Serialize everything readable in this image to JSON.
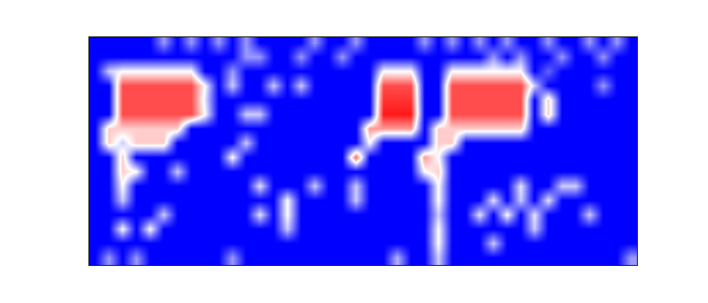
{
  "chart_data": {
    "type": "heatmap",
    "color": "bwr",
    "color_range": [
      0,
      1
    ],
    "tick_labels": false,
    "cells": [
      [
        0,
        0,
        0,
        0,
        0,
        0.3,
        0,
        0.3,
        0,
        0.3,
        0,
        0.3,
        0,
        0,
        0,
        0,
        0.3,
        0,
        0,
        0.3,
        0,
        0,
        0,
        0,
        0.3,
        0,
        0.3,
        0,
        0.3,
        0,
        0.3,
        0,
        0,
        0.3,
        0,
        0,
        0.3,
        0,
        0.3,
        0
      ],
      [
        0,
        0,
        0,
        0,
        0,
        0,
        0,
        0,
        0,
        0,
        0,
        0.3,
        0.3,
        0,
        0,
        0.3,
        0,
        0,
        0.3,
        0,
        0,
        0,
        0,
        0,
        0,
        0,
        0,
        0,
        0,
        0.3,
        0,
        0.3,
        0,
        0,
        0.3,
        0,
        0,
        0.3,
        0,
        0
      ],
      [
        0,
        0.4,
        0.5,
        0.5,
        0.5,
        0.5,
        0.5,
        0.5,
        0,
        0,
        0.3,
        0,
        0,
        0,
        0,
        0,
        0,
        0,
        0,
        0,
        0,
        0.5,
        0.5,
        0.5,
        0,
        0,
        0.5,
        0.5,
        0.5,
        0.5,
        0.5,
        0.5,
        0,
        0.2,
        0,
        0,
        0,
        0,
        0,
        0
      ],
      [
        0,
        0,
        0.85,
        0.85,
        0.85,
        0.85,
        0.85,
        0.85,
        0.5,
        0,
        0.4,
        0,
        0,
        0.4,
        0,
        0.4,
        0,
        0,
        0,
        0,
        0,
        0.85,
        0.85,
        0.85,
        0,
        0,
        0.85,
        0.85,
        0.85,
        0.85,
        0.85,
        0.85,
        0.4,
        0,
        0,
        0,
        0,
        0.3,
        0,
        0
      ],
      [
        0,
        0,
        0.85,
        0.85,
        0.85,
        0.85,
        0.85,
        0.85,
        0.45,
        0,
        0,
        0,
        0,
        0,
        0,
        0,
        0,
        0,
        0,
        0,
        0,
        0.9,
        0.9,
        0.9,
        0,
        0,
        0.85,
        0.85,
        0.85,
        0.85,
        0.85,
        0.85,
        0,
        0.6,
        0,
        0,
        0,
        0,
        0,
        0
      ],
      [
        0,
        0,
        0.85,
        0.85,
        0.85,
        0.85,
        0.85,
        0.85,
        0.5,
        0,
        0,
        0.4,
        0.4,
        0,
        0,
        0,
        0,
        0,
        0,
        0,
        0,
        0.95,
        0.95,
        0.95,
        0,
        0,
        0.85,
        0.85,
        0.85,
        0.85,
        0.85,
        0.85,
        0,
        0.6,
        0,
        0,
        0,
        0,
        0,
        0
      ],
      [
        0,
        0.6,
        0.6,
        0.6,
        0.6,
        0.6,
        0.6,
        0,
        0,
        0,
        0,
        0,
        0,
        0,
        0,
        0,
        0,
        0,
        0,
        0,
        0.7,
        0.7,
        0.7,
        0.7,
        0,
        0.6,
        0.6,
        0.6,
        0.6,
        0.6,
        0.6,
        0.6,
        0,
        0,
        0,
        0,
        0,
        0,
        0,
        0
      ],
      [
        0,
        0.6,
        0.4,
        0.6,
        0.6,
        0.6,
        0,
        0,
        0,
        0,
        0,
        0.4,
        0,
        0,
        0,
        0,
        0,
        0,
        0,
        0,
        0.5,
        0,
        0,
        0,
        0,
        0.6,
        0.6,
        0,
        0,
        0,
        0,
        0,
        0,
        0,
        0,
        0,
        0,
        0,
        0,
        0
      ],
      [
        0,
        0,
        0.6,
        0,
        0,
        0,
        0,
        0,
        0,
        0,
        0.5,
        0,
        0,
        0,
        0,
        0,
        0,
        0,
        0,
        0.8,
        0,
        0,
        0,
        0,
        0.7,
        0.5,
        0,
        0,
        0,
        0,
        0,
        0,
        0,
        0,
        0,
        0,
        0,
        0,
        0,
        0
      ],
      [
        0,
        0,
        0.6,
        0.5,
        0,
        0,
        0.4,
        0,
        0,
        0,
        0,
        0,
        0,
        0,
        0,
        0,
        0,
        0,
        0,
        0,
        0,
        0,
        0,
        0,
        0.5,
        0.6,
        0,
        0,
        0,
        0,
        0,
        0,
        0,
        0,
        0,
        0,
        0,
        0,
        0,
        0
      ],
      [
        0,
        0,
        0.5,
        0,
        0,
        0,
        0,
        0,
        0,
        0,
        0,
        0,
        0.45,
        0,
        0,
        0,
        0.4,
        0,
        0,
        0.4,
        0,
        0,
        0,
        0,
        0,
        0.5,
        0,
        0,
        0,
        0,
        0,
        0.45,
        0,
        0,
        0.4,
        0.4,
        0,
        0,
        0,
        0
      ],
      [
        0,
        0,
        0.4,
        0,
        0,
        0,
        0,
        0,
        0,
        0,
        0,
        0,
        0,
        0,
        0.5,
        0,
        0,
        0,
        0,
        0.4,
        0,
        0,
        0,
        0,
        0,
        0.5,
        0,
        0,
        0,
        0.45,
        0,
        0.4,
        0,
        0.45,
        0,
        0,
        0,
        0,
        0,
        0
      ],
      [
        0,
        0,
        0,
        0,
        0,
        0.4,
        0,
        0,
        0,
        0,
        0,
        0,
        0.45,
        0,
        0.5,
        0,
        0,
        0,
        0,
        0,
        0,
        0,
        0,
        0,
        0,
        0.4,
        0,
        0,
        0.45,
        0,
        0.5,
        0,
        0.45,
        0,
        0,
        0,
        0.4,
        0,
        0,
        0
      ],
      [
        0,
        0,
        0.5,
        0,
        0.5,
        0,
        0,
        0,
        0,
        0,
        0,
        0,
        0,
        0,
        0.4,
        0,
        0,
        0,
        0,
        0,
        0,
        0,
        0,
        0,
        0,
        0.5,
        0,
        0,
        0,
        0,
        0,
        0,
        0.4,
        0,
        0,
        0,
        0,
        0,
        0,
        0
      ],
      [
        0,
        0,
        0,
        0,
        0,
        0,
        0,
        0,
        0,
        0,
        0,
        0,
        0,
        0,
        0,
        0,
        0,
        0,
        0,
        0,
        0,
        0,
        0,
        0,
        0,
        0.5,
        0,
        0,
        0,
        0.4,
        0,
        0,
        0,
        0,
        0,
        0,
        0,
        0,
        0,
        0
      ],
      [
        0,
        0.3,
        0,
        0.3,
        0,
        0,
        0,
        0,
        0,
        0,
        0.3,
        0,
        0,
        0,
        0,
        0,
        0,
        0,
        0,
        0,
        0,
        0,
        0.35,
        0,
        0,
        0.4,
        0,
        0,
        0,
        0,
        0,
        0,
        0,
        0,
        0,
        0,
        0,
        0,
        0,
        0.3
      ]
    ]
  }
}
